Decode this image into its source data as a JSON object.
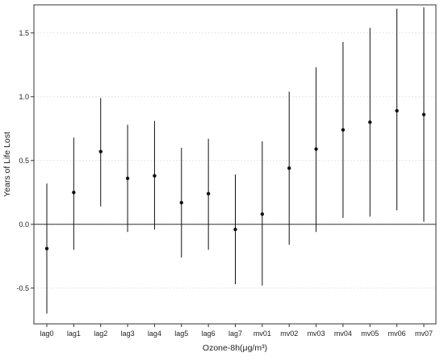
{
  "chart_data": {
    "type": "scatter",
    "subtype": "point-estimate-with-error-bars",
    "xlabel": "Ozone-8h(μg/m³)",
    "ylabel": "Years of Life Lost",
    "categories": [
      "lag0",
      "lag1",
      "lag2",
      "lag3",
      "lag4",
      "lag5",
      "lag6",
      "lag7",
      "mv01",
      "mv02",
      "mv03",
      "mv04",
      "mv05",
      "mv06",
      "mv07"
    ],
    "estimates": [
      -0.19,
      0.25,
      0.57,
      0.36,
      0.38,
      0.17,
      0.24,
      -0.04,
      0.08,
      0.44,
      0.59,
      0.74,
      0.8,
      0.89,
      0.86
    ],
    "lower": [
      -0.7,
      -0.2,
      0.14,
      -0.06,
      -0.04,
      -0.26,
      -0.2,
      -0.47,
      -0.48,
      -0.16,
      -0.06,
      0.05,
      0.06,
      0.11,
      0.02
    ],
    "upper": [
      0.32,
      0.68,
      0.99,
      0.78,
      0.81,
      0.6,
      0.67,
      0.39,
      0.65,
      1.04,
      1.23,
      1.43,
      1.54,
      1.69,
      1.7
    ],
    "yticks": [
      -0.5,
      0.0,
      0.5,
      1.0,
      1.5
    ],
    "ytick_labels": [
      "-0.5",
      "0.0",
      "0.5",
      "1.0",
      "1.5"
    ],
    "ylim": [
      -0.78,
      1.72
    ],
    "reference_line": 0.0,
    "grid": true,
    "colors": {
      "marks": "#111111",
      "grid": "#e6e6e6",
      "axis": "#333333"
    }
  }
}
